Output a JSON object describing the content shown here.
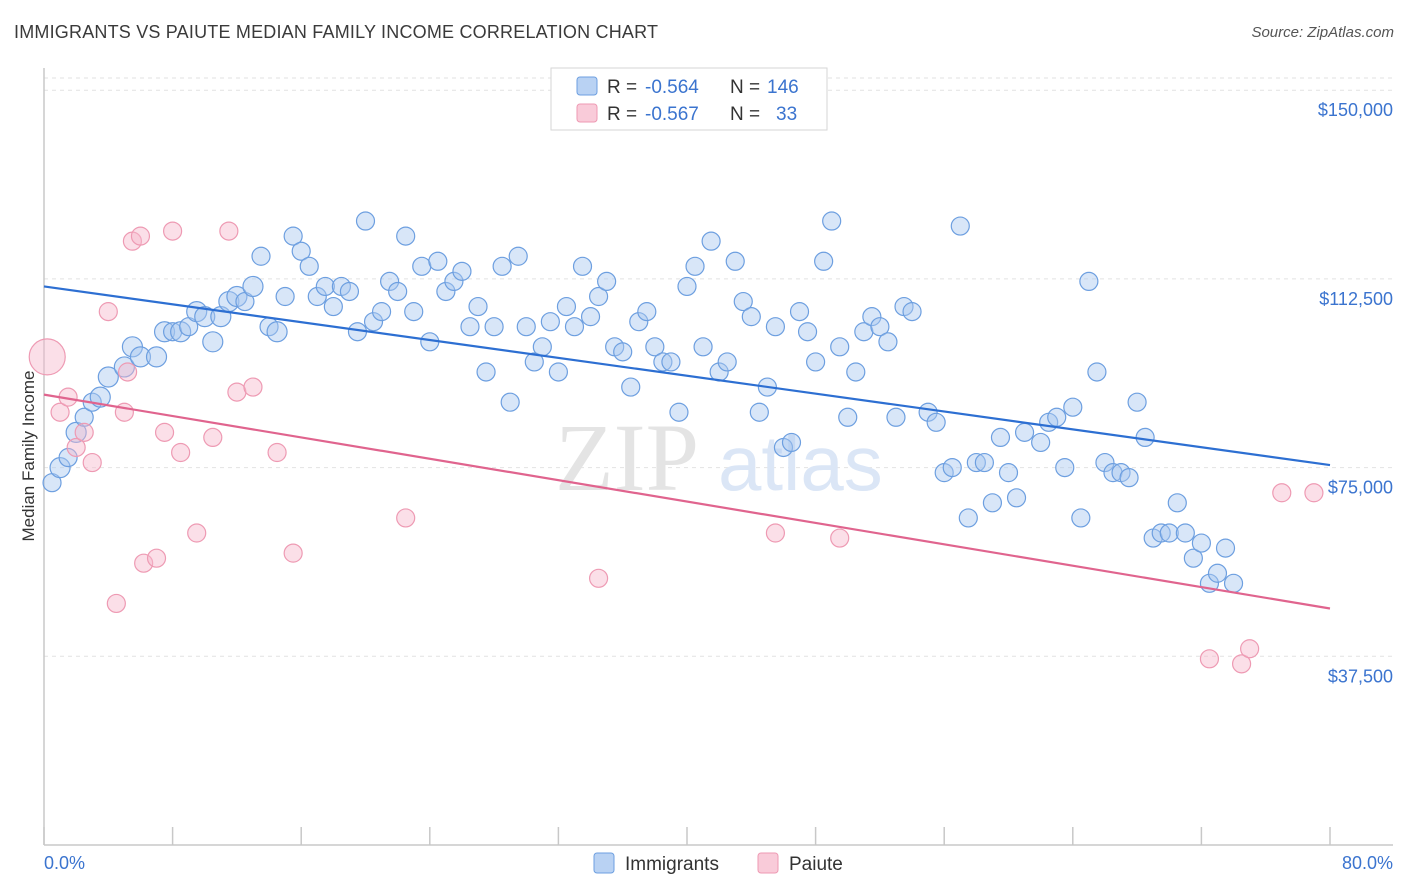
{
  "title": "IMMIGRANTS VS PAIUTE MEDIAN FAMILY INCOME CORRELATION CHART",
  "source": "Source: ZipAtlas.com",
  "watermark": {
    "zip": "ZIP",
    "atlas": "atlas"
  },
  "legend_top": [
    {
      "r_label": "R =",
      "r_value": "-0.564",
      "n_label": "N =",
      "n_value": "146",
      "color": "#a9c8f0"
    },
    {
      "r_label": "R =",
      "r_value": "-0.567",
      "n_label": "N =",
      "n_value": "33",
      "color": "#f6b8cb"
    }
  ],
  "legend_bottom": [
    {
      "label": "Immigrants",
      "color": "#a9c8f0"
    },
    {
      "label": "Paiute",
      "color": "#f6b8cb"
    }
  ],
  "chart_data": {
    "type": "scatter",
    "xlabel": "",
    "ylabel": "Median Family Income",
    "xlim": [
      0,
      80
    ],
    "ylim": [
      0,
      156000
    ],
    "x_tick_labels": [
      "0.0%",
      "80.0%"
    ],
    "y_ticks": [
      37500,
      75000,
      112500,
      150000
    ],
    "y_tick_labels": [
      "$37,500",
      "$75,000",
      "$112,500",
      "$150,000"
    ],
    "grid": "horizontal dashed",
    "series": [
      {
        "name": "Immigrants",
        "color": "#6d9fe0",
        "fill": "#a9c8f0",
        "trend": {
          "x": [
            0,
            80
          ],
          "y": [
            111000,
            75500
          ]
        },
        "points": [
          [
            0.5,
            72000,
            9
          ],
          [
            1,
            75000,
            10
          ],
          [
            1.5,
            77000,
            9
          ],
          [
            2,
            82000,
            10
          ],
          [
            2.5,
            85000,
            9
          ],
          [
            3,
            88000,
            9
          ],
          [
            3.5,
            89000,
            10
          ],
          [
            4,
            93000,
            10
          ],
          [
            5,
            95000,
            10
          ],
          [
            5.5,
            99000,
            10
          ],
          [
            6,
            97000,
            10
          ],
          [
            7,
            97000,
            10
          ],
          [
            7.5,
            102000,
            10
          ],
          [
            8,
            102000,
            9
          ],
          [
            8.5,
            102000,
            10
          ],
          [
            9,
            103000,
            9
          ],
          [
            9.5,
            106000,
            10
          ],
          [
            10,
            105000,
            10
          ],
          [
            10.5,
            100000,
            10
          ],
          [
            11,
            105000,
            10
          ],
          [
            11.5,
            108000,
            10
          ],
          [
            12,
            109000,
            10
          ],
          [
            12.5,
            108000,
            9
          ],
          [
            13,
            111000,
            10
          ],
          [
            13.5,
            117000,
            9
          ],
          [
            14,
            103000,
            9
          ],
          [
            14.5,
            102000,
            10
          ],
          [
            15,
            109000,
            9
          ],
          [
            15.5,
            121000,
            9
          ],
          [
            16,
            118000,
            9
          ],
          [
            16.5,
            115000,
            9
          ],
          [
            17,
            109000,
            9
          ],
          [
            17.5,
            111000,
            9
          ],
          [
            18,
            107000,
            9
          ],
          [
            18.5,
            111000,
            9
          ],
          [
            19,
            110000,
            9
          ],
          [
            19.5,
            102000,
            9
          ],
          [
            20,
            124000,
            9
          ],
          [
            20.5,
            104000,
            9
          ],
          [
            21,
            106000,
            9
          ],
          [
            21.5,
            112000,
            9
          ],
          [
            22,
            110000,
            9
          ],
          [
            22.5,
            121000,
            9
          ],
          [
            23,
            106000,
            9
          ],
          [
            23.5,
            115000,
            9
          ],
          [
            24,
            100000,
            9
          ],
          [
            24.5,
            116000,
            9
          ],
          [
            25,
            110000,
            9
          ],
          [
            25.5,
            112000,
            9
          ],
          [
            26,
            114000,
            9
          ],
          [
            26.5,
            103000,
            9
          ],
          [
            27,
            107000,
            9
          ],
          [
            27.5,
            94000,
            9
          ],
          [
            28,
            103000,
            9
          ],
          [
            28.5,
            115000,
            9
          ],
          [
            29,
            88000,
            9
          ],
          [
            29.5,
            117000,
            9
          ],
          [
            30,
            103000,
            9
          ],
          [
            30.5,
            96000,
            9
          ],
          [
            31,
            99000,
            9
          ],
          [
            31.5,
            104000,
            9
          ],
          [
            32,
            94000,
            9
          ],
          [
            32.5,
            107000,
            9
          ],
          [
            33,
            103000,
            9
          ],
          [
            33.5,
            115000,
            9
          ],
          [
            34,
            105000,
            9
          ],
          [
            34.5,
            109000,
            9
          ],
          [
            35,
            112000,
            9
          ],
          [
            35.5,
            99000,
            9
          ],
          [
            36,
            98000,
            9
          ],
          [
            36.5,
            91000,
            9
          ],
          [
            37,
            104000,
            9
          ],
          [
            37.5,
            106000,
            9
          ],
          [
            38,
            99000,
            9
          ],
          [
            38.5,
            96000,
            9
          ],
          [
            39,
            96000,
            9
          ],
          [
            39.5,
            86000,
            9
          ],
          [
            40,
            111000,
            9
          ],
          [
            40.5,
            115000,
            9
          ],
          [
            41,
            99000,
            9
          ],
          [
            41.5,
            120000,
            9
          ],
          [
            42,
            94000,
            9
          ],
          [
            42.5,
            96000,
            9
          ],
          [
            43,
            116000,
            9
          ],
          [
            43.5,
            108000,
            9
          ],
          [
            44,
            105000,
            9
          ],
          [
            44.5,
            86000,
            9
          ],
          [
            45,
            91000,
            9
          ],
          [
            45.5,
            103000,
            9
          ],
          [
            46,
            79000,
            9
          ],
          [
            46.5,
            80000,
            9
          ],
          [
            47,
            106000,
            9
          ],
          [
            47.5,
            102000,
            9
          ],
          [
            48,
            96000,
            9
          ],
          [
            48.5,
            116000,
            9
          ],
          [
            49,
            124000,
            9
          ],
          [
            49.5,
            99000,
            9
          ],
          [
            50,
            85000,
            9
          ],
          [
            50.5,
            94000,
            9
          ],
          [
            51,
            102000,
            9
          ],
          [
            51.5,
            105000,
            9
          ],
          [
            52,
            103000,
            9
          ],
          [
            52.5,
            100000,
            9
          ],
          [
            53,
            85000,
            9
          ],
          [
            53.5,
            107000,
            9
          ],
          [
            54,
            106000,
            9
          ],
          [
            55,
            86000,
            9
          ],
          [
            55.5,
            84000,
            9
          ],
          [
            56,
            74000,
            9
          ],
          [
            56.5,
            75000,
            9
          ],
          [
            57,
            123000,
            9
          ],
          [
            57.5,
            65000,
            9
          ],
          [
            58,
            76000,
            9
          ],
          [
            58.5,
            76000,
            9
          ],
          [
            59,
            68000,
            9
          ],
          [
            59.5,
            81000,
            9
          ],
          [
            60,
            74000,
            9
          ],
          [
            60.5,
            69000,
            9
          ],
          [
            61,
            82000,
            9
          ],
          [
            62,
            80000,
            9
          ],
          [
            62.5,
            84000,
            9
          ],
          [
            63,
            85000,
            9
          ],
          [
            63.5,
            75000,
            9
          ],
          [
            64,
            87000,
            9
          ],
          [
            64.5,
            65000,
            9
          ],
          [
            65,
            112000,
            9
          ],
          [
            65.5,
            94000,
            9
          ],
          [
            66,
            76000,
            9
          ],
          [
            66.5,
            74000,
            9
          ],
          [
            67,
            74000,
            9
          ],
          [
            67.5,
            73000,
            9
          ],
          [
            68,
            88000,
            9
          ],
          [
            68.5,
            81000,
            9
          ],
          [
            69,
            61000,
            9
          ],
          [
            69.5,
            62000,
            9
          ],
          [
            70,
            62000,
            9
          ],
          [
            70.5,
            68000,
            9
          ],
          [
            71,
            62000,
            9
          ],
          [
            71.5,
            57000,
            9
          ],
          [
            72,
            60000,
            9
          ],
          [
            72.5,
            52000,
            9
          ],
          [
            73,
            54000,
            9
          ],
          [
            73.5,
            59000,
            9
          ],
          [
            74,
            52000,
            9
          ]
        ]
      },
      {
        "name": "Paiute",
        "color": "#ee9ab3",
        "fill": "#f6b8cb",
        "trend": {
          "x": [
            0,
            80
          ],
          "y": [
            89500,
            47000
          ]
        },
        "points": [
          [
            0.2,
            97000,
            18
          ],
          [
            1,
            86000,
            9
          ],
          [
            1.5,
            89000,
            9
          ],
          [
            2,
            79000,
            9
          ],
          [
            2.5,
            82000,
            9
          ],
          [
            3,
            76000,
            9
          ],
          [
            4,
            106000,
            9
          ],
          [
            4.5,
            48000,
            9
          ],
          [
            5,
            86000,
            9
          ],
          [
            5.2,
            94000,
            9
          ],
          [
            5.5,
            120000,
            9
          ],
          [
            6,
            121000,
            9
          ],
          [
            6.2,
            56000,
            9
          ],
          [
            7,
            57000,
            9
          ],
          [
            7.5,
            82000,
            9
          ],
          [
            8,
            122000,
            9
          ],
          [
            8.5,
            78000,
            9
          ],
          [
            9.5,
            62000,
            9
          ],
          [
            10.5,
            81000,
            9
          ],
          [
            11.5,
            122000,
            9
          ],
          [
            12,
            90000,
            9
          ],
          [
            13,
            91000,
            9
          ],
          [
            14.5,
            78000,
            9
          ],
          [
            15.5,
            58000,
            9
          ],
          [
            22.5,
            65000,
            9
          ],
          [
            34.5,
            53000,
            9
          ],
          [
            45.5,
            62000,
            9
          ],
          [
            49.5,
            61000,
            9
          ],
          [
            72.5,
            37000,
            9
          ],
          [
            74.5,
            36000,
            9
          ],
          [
            75,
            39000,
            9
          ],
          [
            77,
            70000,
            9
          ],
          [
            79,
            70000,
            9
          ]
        ]
      }
    ]
  }
}
